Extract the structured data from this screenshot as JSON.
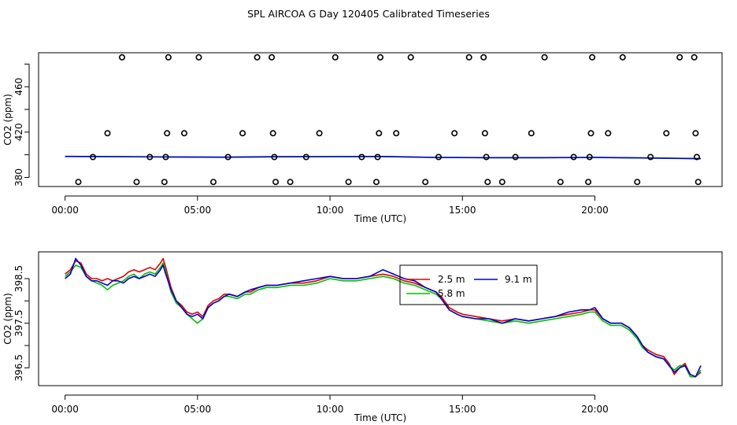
{
  "title": "SPL AIRCOA G  Day 120405  Calibrated Timeseries",
  "colors": {
    "red": "#e00000",
    "green": "#00c000",
    "blue": "#0000cc",
    "black": "#000000"
  },
  "chart_data": [
    {
      "type": "scatter+line",
      "xlabel": "Time (UTC)",
      "ylabel": "CO2 (ppm)",
      "xlim": [
        -1.0,
        24.8
      ],
      "ylim": [
        372,
        490
      ],
      "xticks": [
        0,
        5,
        10,
        15,
        20
      ],
      "xtick_labels": [
        "00:00",
        "05:00",
        "10:00",
        "15:00",
        "20:00"
      ],
      "yticks": [
        380,
        400,
        420,
        440,
        460,
        480
      ],
      "ytick_labels": [
        "380",
        "",
        "420",
        "",
        "460",
        ""
      ],
      "grid": false,
      "markers": {
        "name": "",
        "points": [
          [
            0.5,
            376
          ],
          [
            1.05,
            398
          ],
          [
            1.6,
            419
          ],
          [
            2.15,
            486
          ],
          [
            2.7,
            376
          ],
          [
            3.2,
            398
          ],
          [
            3.75,
            376
          ],
          [
            3.8,
            398
          ],
          [
            3.85,
            419
          ],
          [
            3.9,
            486
          ],
          [
            4.5,
            419
          ],
          [
            5.05,
            486
          ],
          [
            5.6,
            376
          ],
          [
            6.15,
            398
          ],
          [
            6.7,
            419
          ],
          [
            7.25,
            486
          ],
          [
            7.8,
            486
          ],
          [
            7.85,
            419
          ],
          [
            7.9,
            398
          ],
          [
            7.95,
            376
          ],
          [
            8.5,
            376
          ],
          [
            9.1,
            398
          ],
          [
            9.6,
            419
          ],
          [
            10.2,
            486
          ],
          [
            10.7,
            376
          ],
          [
            11.2,
            398
          ],
          [
            11.75,
            376
          ],
          [
            11.8,
            398
          ],
          [
            11.85,
            419
          ],
          [
            11.9,
            486
          ],
          [
            12.5,
            419
          ],
          [
            13.05,
            486
          ],
          [
            13.6,
            376
          ],
          [
            14.1,
            398
          ],
          [
            14.7,
            419
          ],
          [
            15.25,
            486
          ],
          [
            15.8,
            486
          ],
          [
            15.85,
            419
          ],
          [
            15.9,
            398
          ],
          [
            15.95,
            376
          ],
          [
            16.5,
            376
          ],
          [
            17.0,
            398
          ],
          [
            17.6,
            419
          ],
          [
            18.1,
            486
          ],
          [
            18.7,
            376
          ],
          [
            19.2,
            398
          ],
          [
            19.75,
            376
          ],
          [
            19.8,
            398
          ],
          [
            19.85,
            419
          ],
          [
            19.9,
            486
          ],
          [
            20.5,
            419
          ],
          [
            21.05,
            486
          ],
          [
            21.6,
            376
          ],
          [
            22.1,
            398
          ],
          [
            22.7,
            419
          ],
          [
            23.2,
            486
          ],
          [
            23.75,
            486
          ],
          [
            23.8,
            419
          ],
          [
            23.85,
            398
          ],
          [
            23.9,
            376
          ]
        ]
      },
      "series": [
        {
          "name": "",
          "color": "green",
          "x": [
            0,
            2,
            4,
            6,
            8,
            10,
            12,
            14,
            16,
            18,
            20,
            22,
            24
          ],
          "y": [
            398.5,
            398.3,
            398,
            397.8,
            398.2,
            398.3,
            398.4,
            397.6,
            397.4,
            397.4,
            397.6,
            397.1,
            396.5
          ]
        },
        {
          "name": "",
          "color": "blue",
          "x": [
            0,
            2,
            4,
            6,
            8,
            10,
            12,
            14,
            16,
            18,
            20,
            22,
            24
          ],
          "y": [
            398.6,
            398.4,
            398.1,
            397.9,
            398.3,
            398.4,
            398.5,
            397.7,
            397.5,
            397.5,
            397.7,
            397.2,
            396.6
          ]
        }
      ]
    },
    {
      "type": "line",
      "xlabel": "Time (UTC)",
      "ylabel": "CO2 (ppm)",
      "xlim": [
        -1.0,
        24.8
      ],
      "ylim": [
        396.1,
        399.1
      ],
      "xticks": [
        0,
        5,
        10,
        15,
        20
      ],
      "xtick_labels": [
        "00:00",
        "05:00",
        "10:00",
        "15:00",
        "20:00"
      ],
      "yticks": [
        396.5,
        397.0,
        397.5,
        398.0,
        398.5
      ],
      "ytick_labels": [
        "396.5",
        "",
        "397.5",
        "",
        "398.5"
      ],
      "grid": false,
      "legend": {
        "placement": "top-center-right",
        "entries": [
          {
            "label": "2.5 m",
            "color": "red"
          },
          {
            "label": "9.1 m",
            "color": "blue"
          },
          {
            "label": "5.8 m",
            "color": "green"
          }
        ]
      },
      "x": [
        0,
        0.2,
        0.4,
        0.6,
        0.8,
        1.0,
        1.2,
        1.4,
        1.6,
        1.8,
        2.0,
        2.2,
        2.4,
        2.6,
        2.8,
        3.0,
        3.2,
        3.4,
        3.6,
        3.7,
        3.8,
        4.0,
        4.2,
        4.4,
        4.6,
        4.8,
        5.0,
        5.2,
        5.4,
        5.6,
        5.8,
        6.0,
        6.2,
        6.5,
        6.8,
        7.0,
        7.3,
        7.6,
        8.0,
        8.5,
        9.0,
        9.5,
        10.0,
        10.5,
        11.0,
        11.5,
        12.0,
        12.4,
        12.8,
        13.2,
        13.6,
        14.0,
        14.2,
        14.5,
        14.8,
        15.0,
        15.5,
        16.0,
        16.5,
        17.0,
        17.5,
        18.0,
        18.5,
        19.0,
        19.5,
        19.8,
        20.0,
        20.3,
        20.6,
        21.0,
        21.3,
        21.6,
        21.8,
        22.0,
        22.3,
        22.6,
        22.8,
        23.0,
        23.2,
        23.4,
        23.6,
        23.8,
        24.0
      ],
      "series": [
        {
          "name": "2.5 m",
          "color": "red",
          "y": [
            398.6,
            398.7,
            398.9,
            398.85,
            398.6,
            398.5,
            398.5,
            398.45,
            398.5,
            398.45,
            398.5,
            398.55,
            398.65,
            398.7,
            398.65,
            398.7,
            398.75,
            398.7,
            398.85,
            398.95,
            398.75,
            398.3,
            398.0,
            397.9,
            397.75,
            397.7,
            397.75,
            397.65,
            397.9,
            398.0,
            398.05,
            398.15,
            398.15,
            398.1,
            398.2,
            398.2,
            398.3,
            398.35,
            398.35,
            398.4,
            398.4,
            398.45,
            398.55,
            398.5,
            398.5,
            398.55,
            398.6,
            398.55,
            398.45,
            398.4,
            398.3,
            398.2,
            398.1,
            397.85,
            397.75,
            397.7,
            397.65,
            397.6,
            397.55,
            397.6,
            397.55,
            397.6,
            397.65,
            397.7,
            397.75,
            397.8,
            397.8,
            397.6,
            397.5,
            397.5,
            397.4,
            397.2,
            397.0,
            396.9,
            396.8,
            396.75,
            396.6,
            396.35,
            396.5,
            396.6,
            396.35,
            396.3,
            396.4
          ]
        },
        {
          "name": "5.8 m",
          "color": "green",
          "y": [
            398.55,
            398.65,
            398.8,
            398.75,
            398.55,
            398.45,
            398.4,
            398.35,
            398.25,
            398.35,
            398.4,
            398.45,
            398.55,
            398.6,
            398.5,
            398.6,
            398.65,
            398.6,
            398.75,
            398.85,
            398.65,
            398.2,
            397.95,
            397.85,
            397.7,
            397.6,
            397.5,
            397.6,
            397.85,
            397.95,
            398.0,
            398.1,
            398.1,
            398.05,
            398.15,
            398.15,
            398.25,
            398.3,
            398.3,
            398.35,
            398.35,
            398.4,
            398.5,
            398.45,
            398.45,
            398.5,
            398.55,
            398.5,
            398.4,
            398.35,
            398.25,
            398.15,
            398.05,
            397.8,
            397.7,
            397.65,
            397.6,
            397.55,
            397.5,
            397.55,
            397.5,
            397.55,
            397.6,
            397.65,
            397.7,
            397.75,
            397.75,
            397.55,
            397.45,
            397.45,
            397.35,
            397.15,
            396.95,
            396.85,
            396.75,
            396.7,
            396.55,
            396.45,
            396.55,
            396.55,
            396.3,
            396.3,
            396.45
          ]
        },
        {
          "name": "9.1 m",
          "color": "blue",
          "y": [
            398.5,
            398.6,
            398.95,
            398.8,
            398.55,
            398.45,
            398.45,
            398.4,
            398.35,
            398.45,
            398.45,
            398.4,
            398.5,
            398.55,
            398.5,
            398.55,
            398.6,
            398.55,
            398.7,
            398.8,
            398.6,
            398.25,
            398.0,
            397.85,
            397.7,
            397.65,
            397.7,
            397.6,
            397.85,
            397.95,
            398.0,
            398.1,
            398.15,
            398.1,
            398.2,
            398.25,
            398.3,
            398.35,
            398.35,
            398.4,
            398.45,
            398.5,
            398.55,
            398.5,
            398.5,
            398.55,
            398.7,
            398.6,
            398.5,
            398.45,
            398.3,
            398.2,
            398.05,
            397.8,
            397.7,
            397.65,
            397.6,
            397.6,
            397.5,
            397.6,
            397.55,
            397.6,
            397.65,
            397.75,
            397.8,
            397.8,
            397.85,
            397.6,
            397.5,
            397.5,
            397.4,
            397.2,
            397.0,
            396.85,
            396.75,
            396.7,
            396.55,
            396.4,
            396.5,
            396.55,
            396.35,
            396.3,
            396.55
          ]
        }
      ]
    }
  ]
}
